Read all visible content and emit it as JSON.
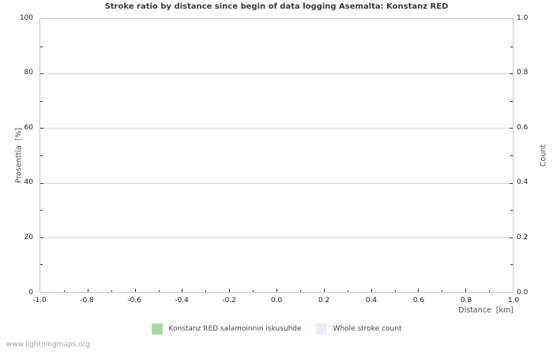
{
  "title": "Stroke ratio by distance since begin of data logging Asemalta: Konstanz RED",
  "watermark": "www.lightningmaps.org",
  "colors": {
    "background": "#ffffff",
    "plot_border": "#c6c6c6",
    "gridline": "#d6d6d6",
    "tick_mark": "#333333",
    "tick_label": "#1c1c1c",
    "axis_label": "#4f4f4f",
    "title": "#3b3b3b",
    "legend_text": "#474747",
    "watermark": "#a6a6a6",
    "series_ratio": "#a9d8a5",
    "series_count": "#eaebf8"
  },
  "chart_data": {
    "type": "bar",
    "title": "Stroke ratio by distance since begin of data logging Asemalta: Konstanz RED",
    "xlabel": "Distance  [km]",
    "ylabel_left": "Prosenttia  [%]",
    "ylabel_right": "Count",
    "xlim": [
      -1.0,
      1.0
    ],
    "ylim_left": [
      0,
      100
    ],
    "ylim_right": [
      0.0,
      1.0
    ],
    "x_ticks": [
      "-1.0",
      "-0.8",
      "-0.6",
      "-0.4",
      "-0.2",
      "0.0",
      "0.2",
      "0.4",
      "0.6",
      "0.8",
      "1.0"
    ],
    "x_minor_step": 0.1,
    "y_ticks_left": [
      "0",
      "20",
      "40",
      "60",
      "80",
      "100"
    ],
    "y_ticks_right": [
      "0.0",
      "0.2",
      "0.4",
      "0.6",
      "0.8",
      "1.0"
    ],
    "y_minor_step_left": 10,
    "grid": "horizontal-only",
    "legend_position": "bottom-center",
    "series": [
      {
        "name": "Konstanz RED salamoinnin iskusuhde",
        "color": "#a9d8a5",
        "x": [],
        "values": []
      },
      {
        "name": "Whole stroke count",
        "color": "#eaebf8",
        "x": [],
        "values": []
      }
    ],
    "note": "chart contains no plotted data points"
  },
  "legend": {
    "items": [
      {
        "label": "Konstanz RED salamoinnin iskusuhde",
        "color": "#a9d8a5"
      },
      {
        "label": "Whole stroke count",
        "color": "#eaebf8"
      }
    ]
  }
}
